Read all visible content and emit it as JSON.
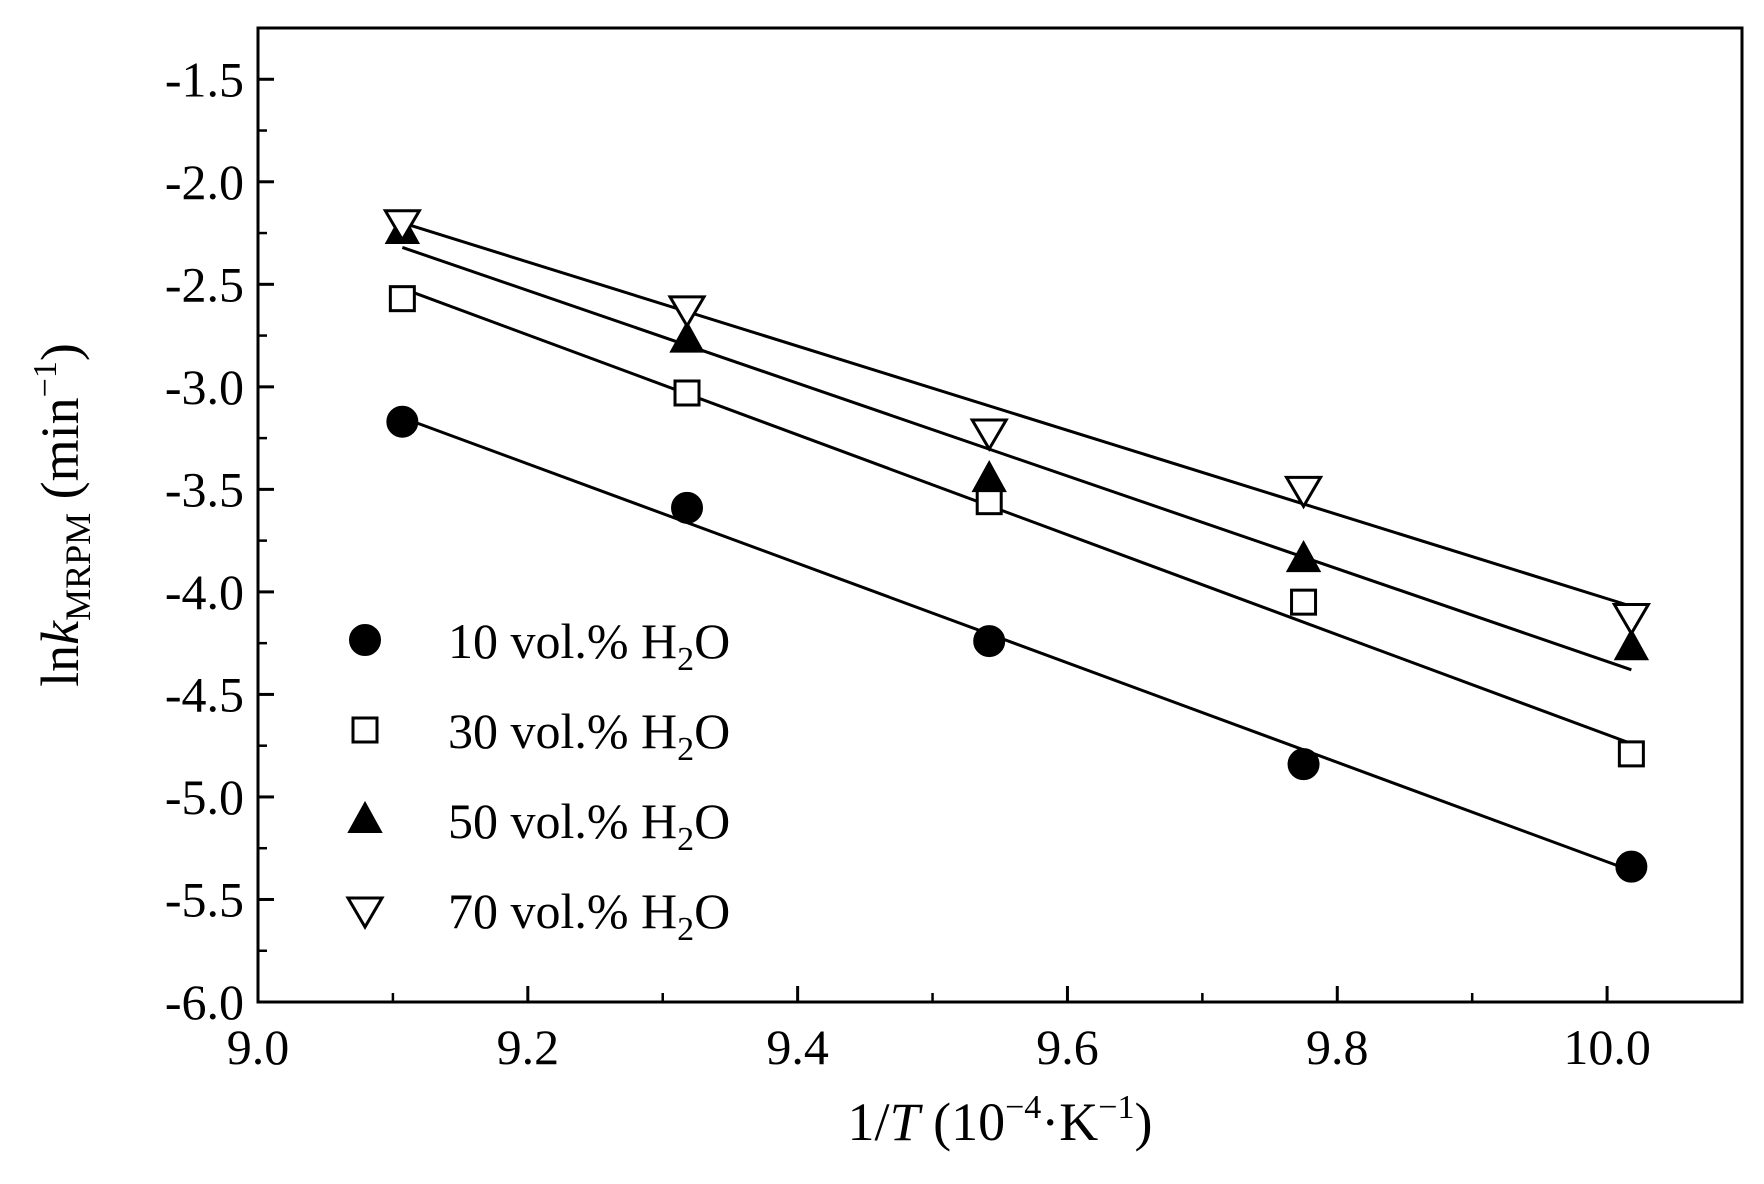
{
  "chart_data": {
    "type": "scatter",
    "title": "",
    "xlabel": {
      "prefix": "1/",
      "var": "T",
      "open": " (10",
      "sup1": "−4",
      "mid": "·K",
      "sup2": "−1",
      "close": ")"
    },
    "ylabel": {
      "prefix": "ln",
      "var": "k",
      "sub": "MRPM",
      "open": " (min",
      "sup": "−1",
      "close": ")"
    },
    "xlim": [
      9.0,
      10.1
    ],
    "ylim": [
      -6.0,
      -1.25
    ],
    "x_ticks": [
      9.0,
      9.2,
      9.4,
      9.6,
      9.8,
      10.0
    ],
    "x_tick_labels": [
      "9.0",
      "9.2",
      "9.4",
      "9.6",
      "9.8",
      "10.0"
    ],
    "y_ticks": [
      -1.5,
      -2.0,
      -2.5,
      -3.0,
      -3.5,
      -4.0,
      -4.5,
      -5.0,
      -5.5,
      -6.0
    ],
    "y_tick_labels": [
      "-1.5",
      "-2.0",
      "-2.5",
      "-3.0",
      "-3.5",
      "-4.0",
      "-4.5",
      "-5.0",
      "-5.5",
      "-6.0"
    ],
    "legend_position": "bottom-left",
    "series": [
      {
        "name": "10 vol.% H2O",
        "pct": "10",
        "marker": "circle-filled",
        "x": [
          9.107,
          9.318,
          9.542,
          9.775,
          10.018
        ],
        "y": [
          -3.17,
          -3.59,
          -4.24,
          -4.84,
          -5.34
        ],
        "fit": [
          [
            9.107,
            -3.15
          ],
          [
            10.018,
            -5.36
          ]
        ]
      },
      {
        "name": "30 vol.% H2O",
        "pct": "30",
        "marker": "square-open",
        "x": [
          9.107,
          9.318,
          9.542,
          9.775,
          10.018
        ],
        "y": [
          -2.57,
          -3.03,
          -3.56,
          -4.05,
          -4.79
        ],
        "fit": [
          [
            9.107,
            -2.52
          ],
          [
            10.018,
            -4.74
          ]
        ]
      },
      {
        "name": "50 vol.% H2O",
        "pct": "50",
        "marker": "triangle-up-filled",
        "x": [
          9.107,
          9.318,
          9.542,
          9.775,
          10.018
        ],
        "y": [
          -2.24,
          -2.77,
          -3.45,
          -3.84,
          -4.27
        ],
        "fit": [
          [
            9.107,
            -2.32
          ],
          [
            10.018,
            -4.38
          ]
        ]
      },
      {
        "name": "70 vol.% H2O",
        "pct": "70",
        "marker": "triangle-down-open",
        "x": [
          9.107,
          9.318,
          9.542,
          9.775,
          10.018
        ],
        "y": [
          -2.2,
          -2.62,
          -3.22,
          -3.5,
          -4.12
        ],
        "fit": [
          [
            9.107,
            -2.2
          ],
          [
            10.018,
            -4.07
          ]
        ]
      }
    ],
    "legend_suffix": {
      "pre": " vol.% H",
      "sub": "2",
      "post": "O"
    }
  }
}
